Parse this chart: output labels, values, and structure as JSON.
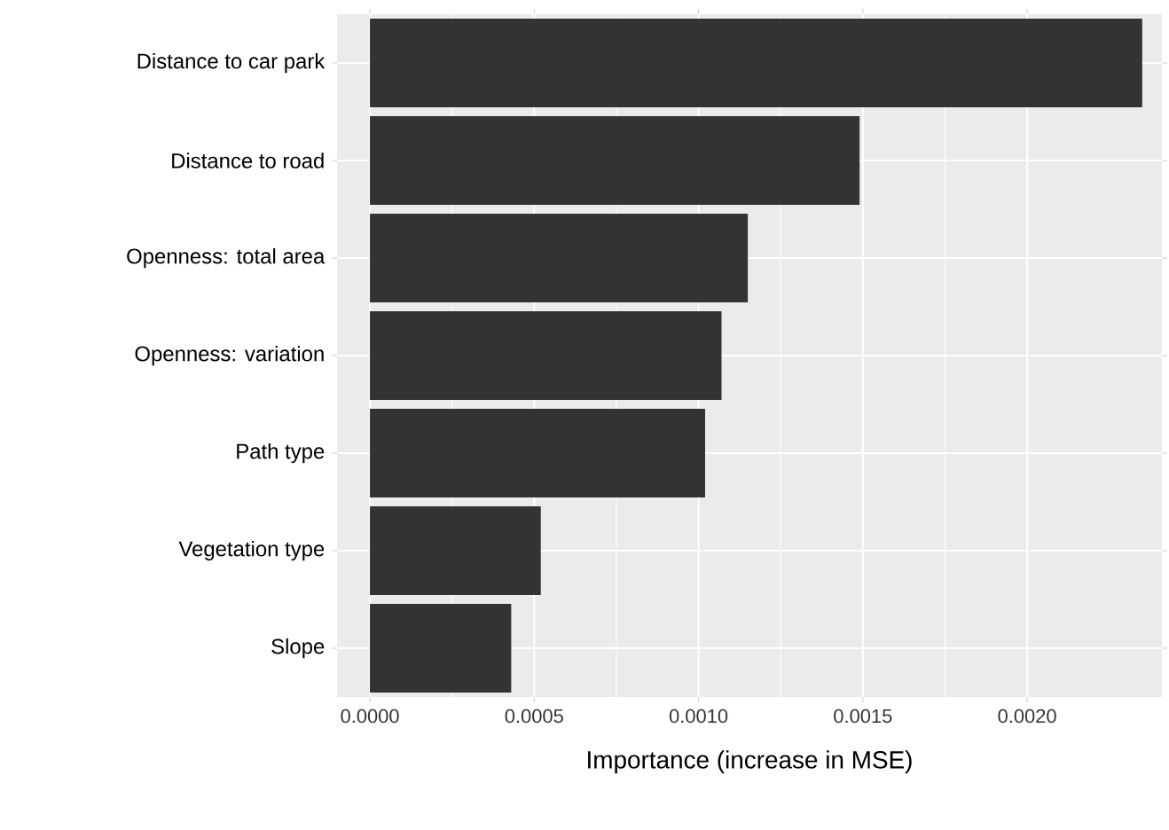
{
  "chart_data": {
    "type": "bar",
    "orientation": "horizontal",
    "xlabel": "Importance (increase in MSE)",
    "categories": [
      "Distance to car park",
      "Distance to road",
      "Openness: total area",
      "Openness: variation",
      "Path type",
      "Vegetation type",
      "Slope"
    ],
    "values": [
      0.00235,
      0.00149,
      0.00115,
      0.00107,
      0.00102,
      0.00052,
      0.00043
    ],
    "color": "#333333",
    "xlim": [
      -0.0001,
      0.00241
    ],
    "xticks": [
      {
        "value": 0,
        "label": "0.0000"
      },
      {
        "value": 0.0005,
        "label": "0.0005"
      },
      {
        "value": 0.001,
        "label": "0.0010"
      },
      {
        "value": 0.0015,
        "label": "0.0015"
      },
      {
        "value": 0.002,
        "label": "0.0020"
      }
    ],
    "grid": true
  }
}
